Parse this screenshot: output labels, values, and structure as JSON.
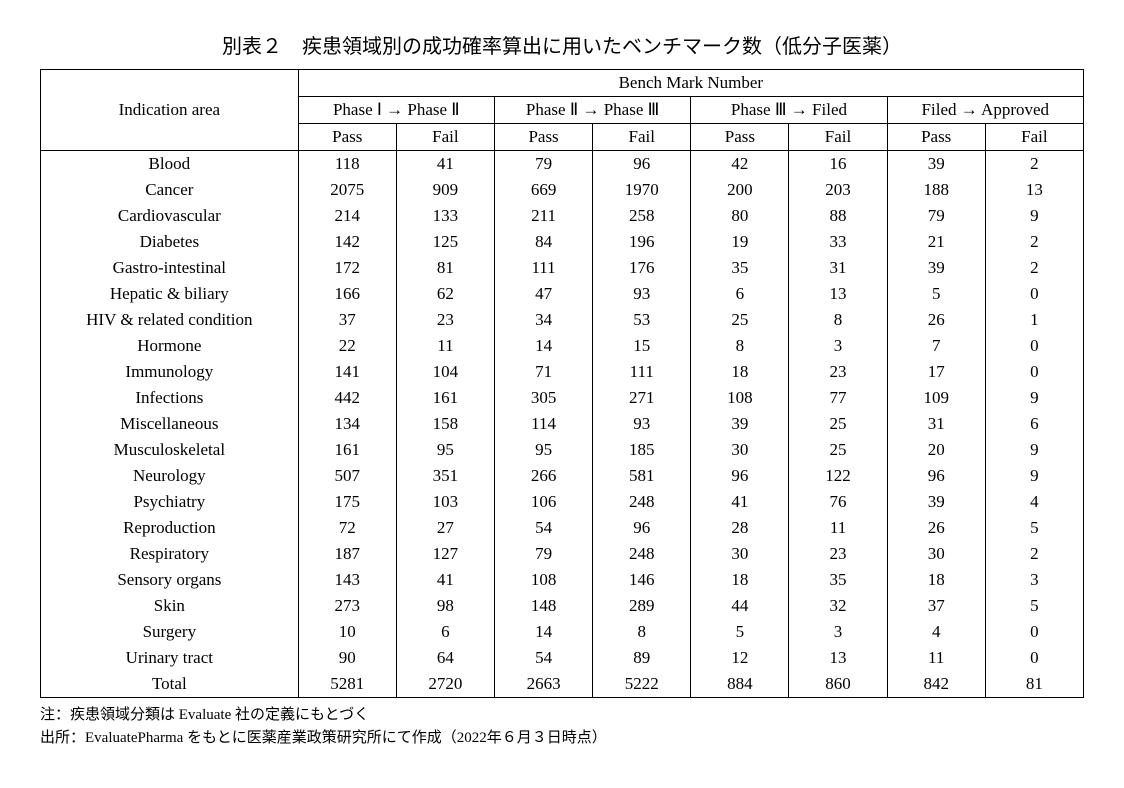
{
  "table": {
    "title": "別表２　疾患領域別の成功確率算出に用いたベンチマーク数（低分子医薬）",
    "header": {
      "row_label": "Indication area",
      "super_header": "Bench Mark Number",
      "phase_groups": [
        "Phase Ⅰ → Phase Ⅱ",
        "Phase Ⅱ → Phase Ⅲ",
        "Phase Ⅲ → Filed",
        "Filed → Approved"
      ],
      "sub_labels": {
        "pass": "Pass",
        "fail": "Fail"
      }
    },
    "columns": [
      "Indication area",
      "Pass",
      "Fail",
      "Pass",
      "Fail",
      "Pass",
      "Fail",
      "Pass",
      "Fail"
    ],
    "rows": [
      [
        "Blood",
        118,
        41,
        79,
        96,
        42,
        16,
        39,
        2
      ],
      [
        "Cancer",
        2075,
        909,
        669,
        1970,
        200,
        203,
        188,
        13
      ],
      [
        "Cardiovascular",
        214,
        133,
        211,
        258,
        80,
        88,
        79,
        9
      ],
      [
        "Diabetes",
        142,
        125,
        84,
        196,
        19,
        33,
        21,
        2
      ],
      [
        "Gastro-intestinal",
        172,
        81,
        111,
        176,
        35,
        31,
        39,
        2
      ],
      [
        "Hepatic & biliary",
        166,
        62,
        47,
        93,
        6,
        13,
        5,
        0
      ],
      [
        "HIV & related condition",
        37,
        23,
        34,
        53,
        25,
        8,
        26,
        1
      ],
      [
        "Hormone",
        22,
        11,
        14,
        15,
        8,
        3,
        7,
        0
      ],
      [
        "Immunology",
        141,
        104,
        71,
        111,
        18,
        23,
        17,
        0
      ],
      [
        "Infections",
        442,
        161,
        305,
        271,
        108,
        77,
        109,
        9
      ],
      [
        "Miscellaneous",
        134,
        158,
        114,
        93,
        39,
        25,
        31,
        6
      ],
      [
        "Musculoskeletal",
        161,
        95,
        95,
        185,
        30,
        25,
        20,
        9
      ],
      [
        "Neurology",
        507,
        351,
        266,
        581,
        96,
        122,
        96,
        9
      ],
      [
        "Psychiatry",
        175,
        103,
        106,
        248,
        41,
        76,
        39,
        4
      ],
      [
        "Reproduction",
        72,
        27,
        54,
        96,
        28,
        11,
        26,
        5
      ],
      [
        "Respiratory",
        187,
        127,
        79,
        248,
        30,
        23,
        30,
        2
      ],
      [
        "Sensory organs",
        143,
        41,
        108,
        146,
        18,
        35,
        18,
        3
      ],
      [
        "Skin",
        273,
        98,
        148,
        289,
        44,
        32,
        37,
        5
      ],
      [
        "Surgery",
        10,
        6,
        14,
        8,
        5,
        3,
        4,
        0
      ],
      [
        "Urinary tract",
        90,
        64,
        54,
        89,
        12,
        13,
        11,
        0
      ],
      [
        "Total",
        5281,
        2720,
        2663,
        5222,
        884,
        860,
        842,
        81
      ]
    ],
    "column_widths_pct": [
      22,
      9.75,
      9.75,
      9.75,
      9.75,
      9.75,
      9.75,
      9.75,
      9.75
    ]
  },
  "notes": {
    "line1": "注：疾患領域分類は Evaluate 社の定義にもとづく",
    "line2": "出所：EvaluatePharma をもとに医薬産業政策研究所にて作成（2022年６月３日時点）"
  },
  "style": {
    "background_color": "#ffffff",
    "text_color": "#000000",
    "border_color": "#000000",
    "title_fontsize": 20,
    "table_fontsize": 17,
    "notes_fontsize": 15
  }
}
